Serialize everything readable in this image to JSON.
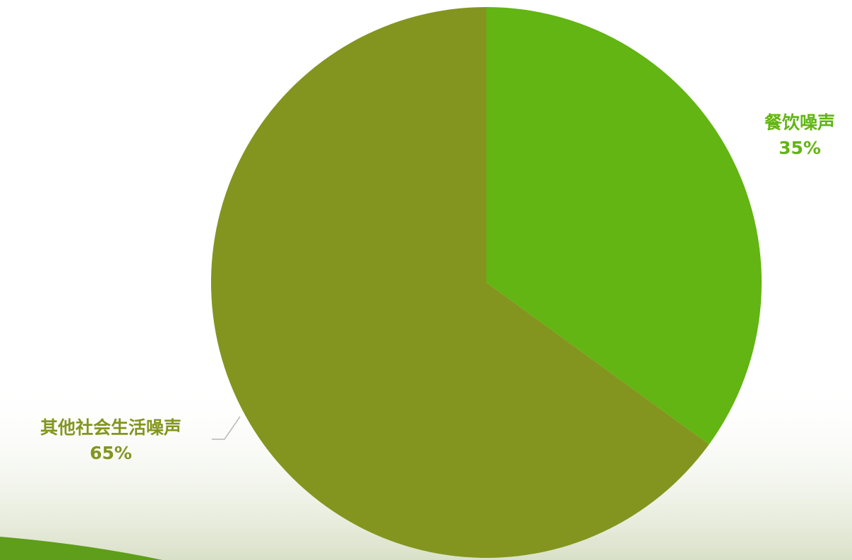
{
  "chart_data": {
    "type": "pie",
    "categories": [
      "餐饮噪声",
      "其他社会生活噪声"
    ],
    "values": [
      35,
      65
    ],
    "value_labels": [
      "35%",
      "65%"
    ],
    "colors": [
      "#62b512",
      "#83951f"
    ]
  }
}
